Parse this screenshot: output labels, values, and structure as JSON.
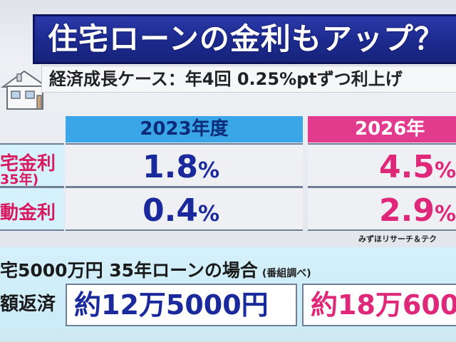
{
  "title": "住宅ローンの金利もアップ？",
  "subtitle": "経済成長ケース：年4回 0.25%ptずつ利上げ",
  "table": {
    "col_2023": "2023年度",
    "col_2026": "2026年",
    "row_fixed_label": "宅金利",
    "row_fixed_sub": "35年)",
    "row_variable_label": "動金利",
    "fixed_2023": "1.8",
    "fixed_2026": "4.5",
    "variable_2023": "0.4",
    "variable_2026": "2.9",
    "unit": "%"
  },
  "source": "みずほリサーチ＆テク",
  "loan": {
    "condition": "宅5000万円 35年ローンの場合",
    "note": "(番組調べ)",
    "repay_label": "額返済",
    "repay_2023": "約12万5000円",
    "repay_2026": "約18万600"
  },
  "colors": {
    "title_bg": "#1c2a8e",
    "header_blue": "#3aa6e8",
    "header_pink": "#e23a8c",
    "value_blue": "#1a2a9c",
    "value_pink": "#e0287a"
  }
}
